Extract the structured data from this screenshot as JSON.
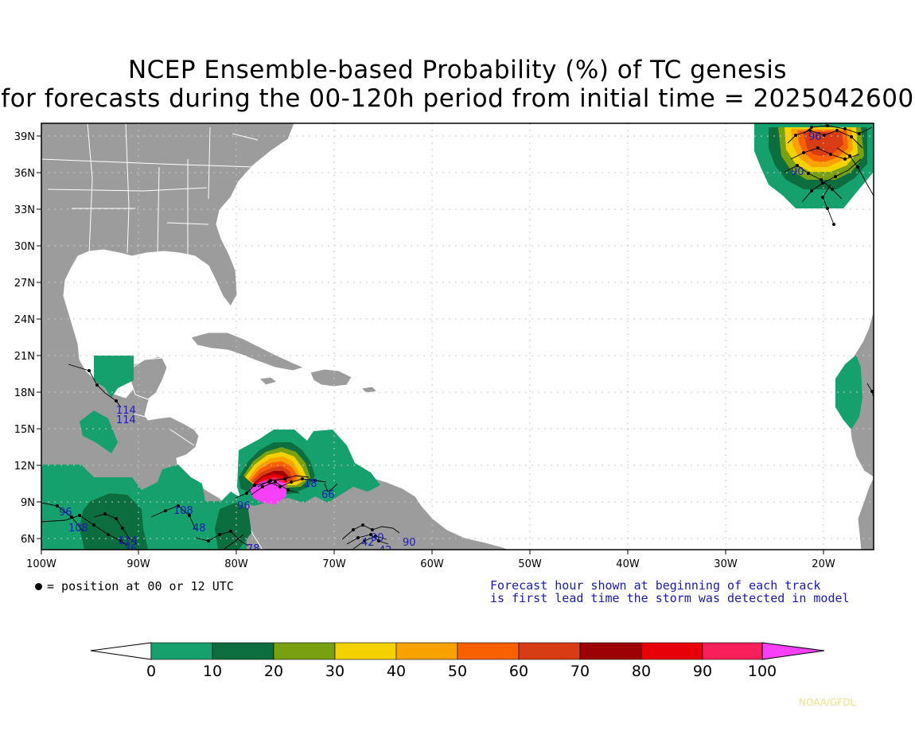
{
  "title_line1": "NCEP Ensemble-based Probability (%) of TC genesis",
  "title_line2": "for forecasts during the 00-120h period from initial time = 2025042600",
  "lat_labels": [
    "39N",
    "36N",
    "33N",
    "30N",
    "27N",
    "24N",
    "21N",
    "18N",
    "15N",
    "12N",
    "9N",
    "6N"
  ],
  "lon_labels": [
    "100W",
    "90W",
    "80W",
    "70W",
    "60W",
    "50W",
    "40W",
    "30W",
    "20W"
  ],
  "legend_position_text": "= position at 00 or 12 UTC",
  "note_line1": "Forecast hour shown at beginning of each track",
  "note_line2": "is first lead time the storm was detected in model",
  "colorbar": {
    "ticks": [
      "0",
      "10",
      "20",
      "30",
      "40",
      "50",
      "60",
      "70",
      "80",
      "90",
      "100"
    ],
    "colors": [
      "#16a06e",
      "#0c6e3e",
      "#78a010",
      "#f4d200",
      "#f8a200",
      "#f86000",
      "#d83c14",
      "#9c0004",
      "#e80008",
      "#f8205a"
    ],
    "below_color": "#ffffff",
    "above_color": "#f840f8"
  },
  "track_labels": [
    "114",
    "114",
    "96",
    "108",
    "108",
    "48",
    "114",
    "36",
    "96",
    "78",
    "108",
    "18",
    "66",
    "42",
    "90",
    "42",
    "90",
    "96",
    "90"
  ],
  "credit": "NOAA/GFDL",
  "colors": {
    "land": "#9c9c9c",
    "ocean": "#ffffff",
    "track_label": "#1c1cb4"
  }
}
